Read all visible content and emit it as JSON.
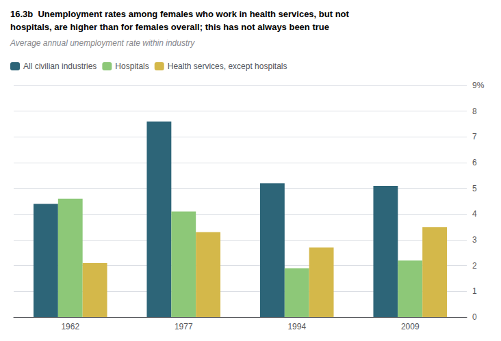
{
  "chart_data": {
    "type": "bar",
    "title": "16.3b  Unemployment rates among females who work in health services, but not\nhospitals, are higher than for females overall; this has not always been true",
    "subtitle": "Average annual unemployment rate within industry",
    "categories": [
      "1962",
      "1977",
      "1994",
      "2009"
    ],
    "series": [
      {
        "name": "All civilian industries",
        "color": "#2d6578",
        "values": [
          4.4,
          7.6,
          5.2,
          5.1
        ]
      },
      {
        "name": "Hospitals",
        "color": "#8dc878",
        "values": [
          4.6,
          4.1,
          1.9,
          2.2
        ]
      },
      {
        "name": "Health services, except hospitals",
        "color": "#d4b84a",
        "values": [
          2.1,
          3.3,
          2.7,
          3.5
        ]
      }
    ],
    "ylim": [
      0,
      9
    ],
    "yticks": [
      0,
      1,
      2,
      3,
      4,
      5,
      6,
      7,
      8,
      {
        "value": 9,
        "label": "9%"
      }
    ],
    "grid": true,
    "legend": "top-left"
  }
}
